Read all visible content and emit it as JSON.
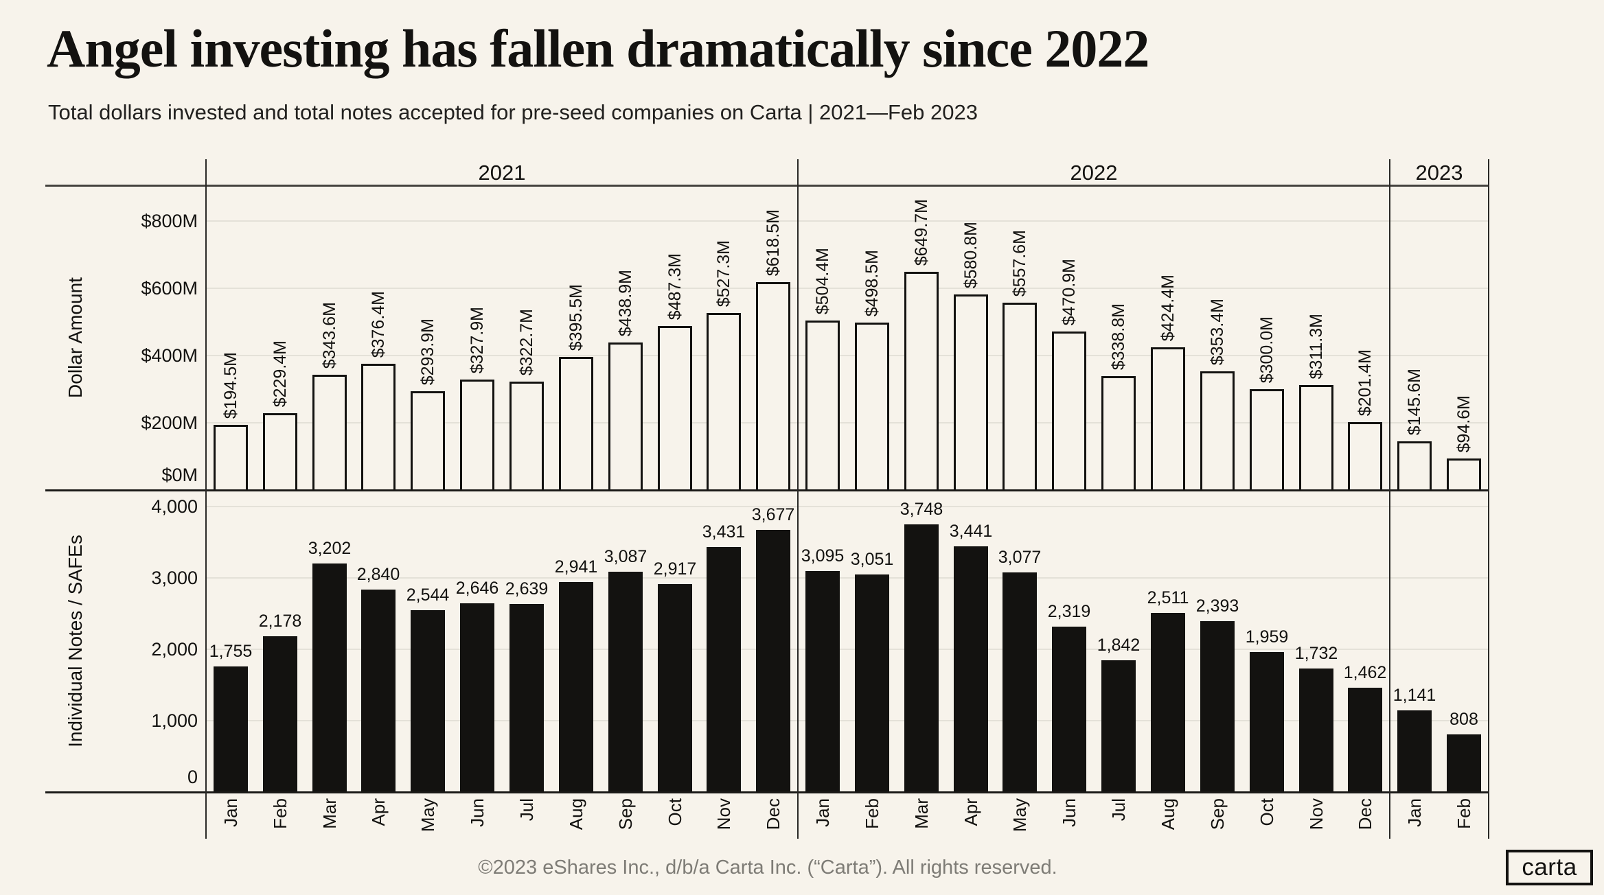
{
  "page": {
    "footer": "©2023 eShares Inc., d/b/a Carta Inc. (“Carta”). All rights reserved.",
    "logo_text": "carta"
  },
  "chart_data": {
    "type": "bar",
    "title": "Angel investing has fallen dramatically since 2022",
    "subtitle": "Total dollars invested and total notes accepted for pre-seed companies on Carta | 2021—Feb 2023",
    "categories": [
      "Jan",
      "Feb",
      "Mar",
      "Apr",
      "May",
      "Jun",
      "Jul",
      "Aug",
      "Sep",
      "Oct",
      "Nov",
      "Dec",
      "Jan",
      "Feb",
      "Mar",
      "Apr",
      "May",
      "Jun",
      "Jul",
      "Aug",
      "Sep",
      "Oct",
      "Nov",
      "Dec",
      "Jan",
      "Feb"
    ],
    "year_groups": [
      {
        "label": "2021",
        "months": 12
      },
      {
        "label": "2022",
        "months": 12
      },
      {
        "label": "2023",
        "months": 2
      }
    ],
    "legend": "none",
    "grid": "horizontal",
    "panels": [
      {
        "name": "dollar-amount",
        "ylabel": "Dollar Amount",
        "unit": "USD millions",
        "bar_style": "outline",
        "ylim": [
          0,
          900
        ],
        "yticks": [
          "$0M",
          "$200M",
          "$400M",
          "$600M",
          "$800M"
        ],
        "ytick_values": [
          0,
          200,
          400,
          600,
          800
        ],
        "values": [
          194.5,
          229.4,
          343.6,
          376.4,
          293.9,
          327.9,
          322.7,
          395.5,
          438.9,
          487.3,
          527.3,
          618.5,
          504.4,
          498.5,
          649.7,
          580.8,
          557.6,
          470.9,
          338.8,
          424.4,
          353.4,
          300.0,
          311.3,
          201.4,
          145.6,
          94.6
        ],
        "labels": [
          "$194.5M",
          "$229.4M",
          "$343.6M",
          "$376.4M",
          "$293.9M",
          "$327.9M",
          "$322.7M",
          "$395.5M",
          "$438.9M",
          "$487.3M",
          "$527.3M",
          "$618.5M",
          "$504.4M",
          "$498.5M",
          "$649.7M",
          "$580.8M",
          "$557.6M",
          "$470.9M",
          "$338.8M",
          "$424.4M",
          "$353.4M",
          "$300.0M",
          "$311.3M",
          "$201.4M",
          "$145.6M",
          "$94.6M"
        ]
      },
      {
        "name": "individual-notes-safes",
        "ylabel": "Individual Notes / SAFEs",
        "unit": "count",
        "bar_style": "solid",
        "ylim": [
          0,
          4200
        ],
        "yticks": [
          "0",
          "1,000",
          "2,000",
          "3,000",
          "4,000"
        ],
        "ytick_values": [
          0,
          1000,
          2000,
          3000,
          4000
        ],
        "values": [
          1755,
          2178,
          3202,
          2840,
          2544,
          2646,
          2639,
          2941,
          3087,
          2917,
          3431,
          3677,
          3095,
          3051,
          3748,
          3441,
          3077,
          2319,
          1842,
          2511,
          2393,
          1959,
          1732,
          1462,
          1141,
          808
        ],
        "labels": [
          "1,755",
          "2,178",
          "3,202",
          "2,840",
          "2,544",
          "2,646",
          "2,639",
          "2,941",
          "3,087",
          "2,917",
          "3,431",
          "3,677",
          "3,095",
          "3,051",
          "3,748",
          "3,441",
          "3,077",
          "2,319",
          "1,842",
          "2,511",
          "2,393",
          "1,959",
          "1,732",
          "1,462",
          "1,141",
          "808"
        ]
      }
    ],
    "colors": {
      "background": "#F7F3EB",
      "bar_fill": "#F7F3EB",
      "bar_outline": "#131210",
      "solid_bar": "#131210",
      "gridline": "#E4E1D8",
      "frame": "#44423E",
      "text": "#131210",
      "footer_text": "#7E7C76"
    }
  }
}
